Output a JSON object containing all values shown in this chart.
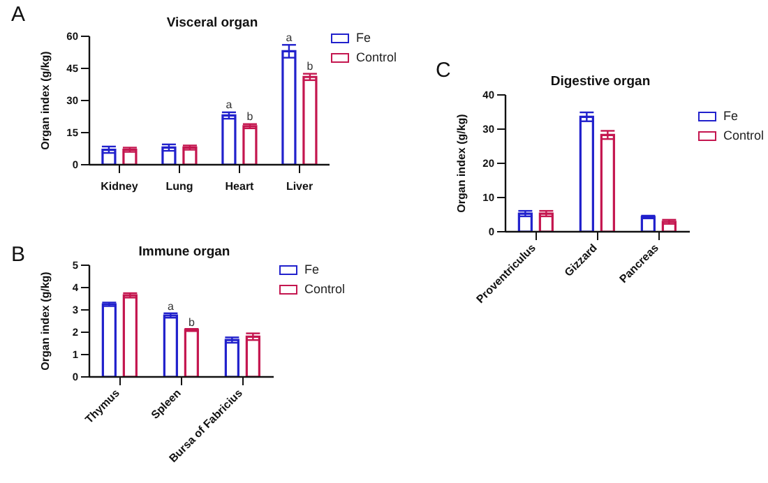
{
  "chart_data": [
    {
      "type": "bar",
      "title": "Visceral organ",
      "ylabel": "Organ index (g/kg)",
      "categories": [
        "Kidney",
        "Lung",
        "Heart",
        "Liver"
      ],
      "series": [
        {
          "name": "Fe",
          "color": "#2121cc",
          "values": [
            7,
            8,
            23,
            53
          ],
          "errors": [
            1.5,
            1.5,
            1.5,
            3
          ]
        },
        {
          "name": "Control",
          "color": "#c4164f",
          "values": [
            7,
            8,
            18,
            41
          ],
          "errors": [
            1,
            1,
            1,
            1.5
          ]
        }
      ],
      "ylim": [
        0,
        60
      ],
      "yticks": [
        0,
        15,
        30,
        45,
        60
      ],
      "legend": "top right",
      "grid": false,
      "annotations": [
        "A",
        {
          "text": "a",
          "x": "Heart",
          "y": 25
        },
        {
          "text": "b",
          "x": "Heart",
          "y": 19.5
        },
        {
          "text": "a",
          "x": "Liver",
          "y": 56.5
        },
        {
          "text": "b",
          "x": "Liver",
          "y": 43
        }
      ]
    },
    {
      "type": "bar",
      "title": "Immune organ",
      "ylabel": "Organ index (g/kg)",
      "categories": [
        "Thymus",
        "Spleen",
        "Bursa of Fabricius"
      ],
      "series": [
        {
          "name": "Fe",
          "color": "#2121cc",
          "values": [
            3.25,
            2.75,
            1.65
          ],
          "errors": [
            0.08,
            0.1,
            0.12
          ]
        },
        {
          "name": "Control",
          "color": "#c4164f",
          "values": [
            3.65,
            2.1,
            1.8
          ],
          "errors": [
            0.1,
            0.05,
            0.15
          ]
        }
      ],
      "ylim": [
        0,
        5
      ],
      "yticks": [
        0,
        1,
        2,
        3,
        4,
        5
      ],
      "legend": "top right",
      "grid": false,
      "annotations": [
        "B",
        {
          "text": "a",
          "x": "Spleen",
          "y": 2.87
        },
        {
          "text": "b",
          "x": "Spleen",
          "y": 2.17
        }
      ]
    },
    {
      "type": "bar",
      "title": "Digestive organ",
      "ylabel": "Organ index (g/kg)",
      "categories": [
        "Proventriculus",
        "Gizzard",
        "Pancreas"
      ],
      "series": [
        {
          "name": "Fe",
          "color": "#2121cc",
          "values": [
            5.3,
            33.6,
            4.3
          ],
          "errors": [
            0.8,
            1.3,
            0.4
          ]
        },
        {
          "name": "Control",
          "color": "#c4164f",
          "values": [
            5.3,
            28.3,
            2.9
          ],
          "errors": [
            0.8,
            1.2,
            0.6
          ]
        }
      ],
      "ylim": [
        0,
        40
      ],
      "yticks": [
        0,
        10,
        20,
        30,
        40
      ],
      "legend": "top right",
      "grid": false,
      "annotations": [
        "C"
      ]
    }
  ]
}
